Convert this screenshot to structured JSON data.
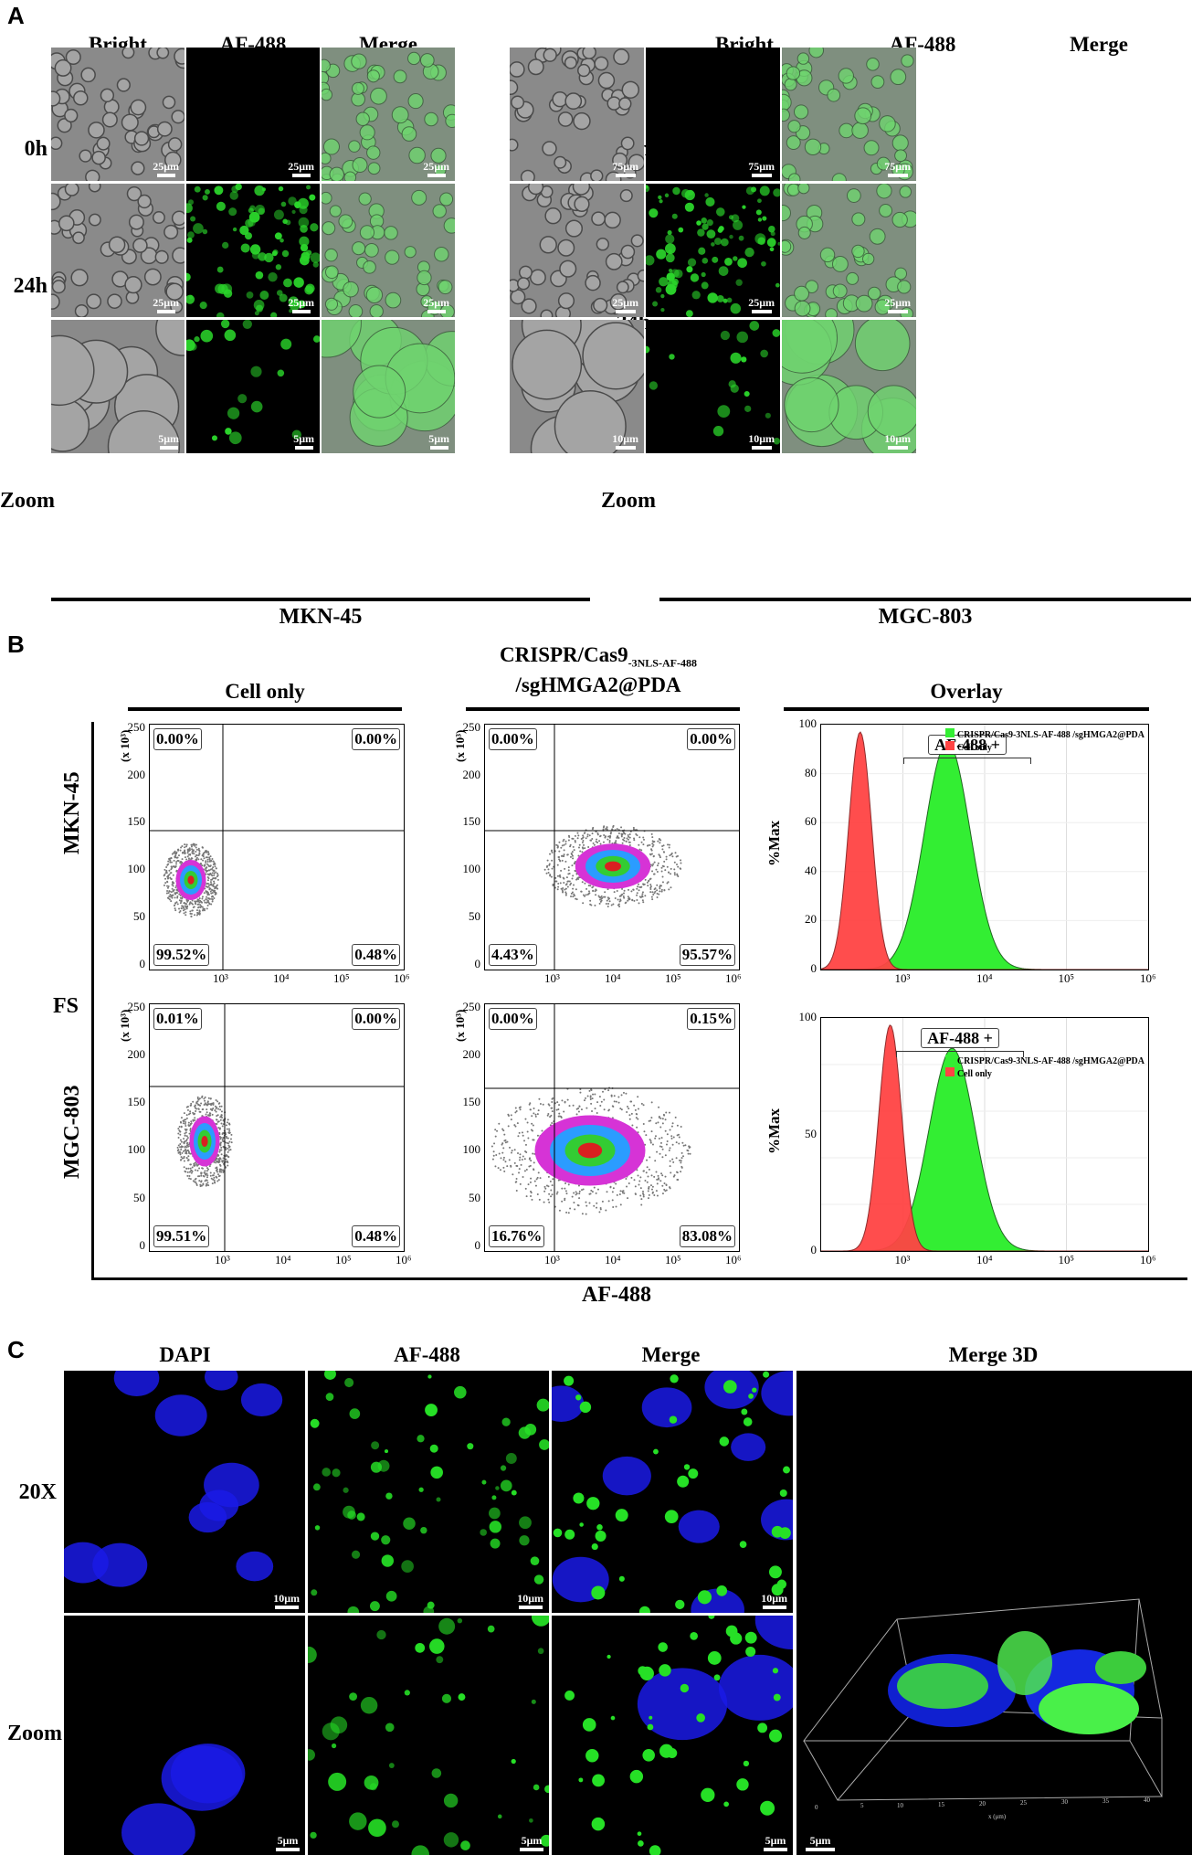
{
  "panelA": {
    "letter": "A",
    "left": {
      "columns": [
        "Bright",
        "AF-488",
        "Merge"
      ],
      "rows": [
        "0h",
        "24h",
        "Zoom"
      ],
      "cell_line": "MKN-45",
      "scalebars": [
        [
          "25μm",
          "25μm",
          "25μm"
        ],
        [
          "25μm",
          "25μm",
          "25μm"
        ],
        [
          "5μm",
          "5μm",
          "5μm"
        ]
      ]
    },
    "right": {
      "columns": [
        "Bright",
        "AF-488",
        "Merge"
      ],
      "rows": [
        "0h",
        "24h",
        "Zoom"
      ],
      "cell_line": "MGC-803",
      "scalebars": [
        [
          "75μm",
          "75μm",
          "75μm"
        ],
        [
          "25μm",
          "25μm",
          "25μm"
        ],
        [
          "10μm",
          "10μm",
          "10μm"
        ]
      ]
    }
  },
  "panelB": {
    "letter": "B",
    "col_cell_only": "Cell only",
    "col_crispr_line1": "CRISPR/Cas9",
    "col_crispr_sub": "-3NLS-AF-488",
    "col_crispr_line2": "/sgHMGA2@PDA",
    "col_overlay": "Overlay",
    "fs_label": "FS",
    "x_axis_label": "AF-488",
    "row_labels": [
      "MKN-45",
      "MGC-803"
    ],
    "y_multiplier": "(x 10³)",
    "quadrants": {
      "mkn_cell_only": [
        "0.00%",
        "0.00%",
        "99.52%",
        "0.48%"
      ],
      "mkn_crispr": [
        "0.00%",
        "0.00%",
        "4.43%",
        "95.57%"
      ],
      "mgc_cell_only": [
        "0.01%",
        "0.00%",
        "99.51%",
        "0.48%"
      ],
      "mgc_crispr": [
        "0.00%",
        "0.15%",
        "16.76%",
        "83.08%"
      ]
    },
    "scatter_y_ticks": [
      "250",
      "200",
      "150",
      "100",
      "50",
      "0"
    ],
    "x_ticks": [
      "10³",
      "10⁴",
      "10⁵",
      "10⁶"
    ],
    "overlay_top": {
      "ylabel": "%Max",
      "y_ticks": [
        "100",
        "80",
        "60",
        "40",
        "20",
        "0"
      ],
      "gate_label": "AF-488 +",
      "legend": [
        "CRISPR/Cas9-3NLS-AF-488 /sgHMGA2@PDA",
        "Cell only"
      ]
    },
    "overlay_bottom": {
      "ylabel": "%Max",
      "y_ticks": [
        "100",
        "50",
        "0"
      ],
      "gate_label": "AF-488 +",
      "legend": [
        "CRISPR/Cas9-3NLS-AF-488 /sgHMGA2@PDA",
        "Cell only"
      ]
    },
    "colors": {
      "green": "#33ee33",
      "red": "#ff4444",
      "green_edge": "#226622",
      "red_edge": "#882222"
    }
  },
  "panelC": {
    "letter": "C",
    "columns": [
      "DAPI",
      "AF-488",
      "Merge",
      "Merge 3D"
    ],
    "rows": [
      "20X",
      "Zoom"
    ],
    "scalebars": [
      [
        "10μm",
        "10μm",
        "10μm"
      ],
      [
        "5μm",
        "5μm",
        "5μm"
      ]
    ],
    "scalebar_3d": "5μm"
  },
  "chart_data": [
    {
      "type": "area",
      "title": "Overlay MKN-45",
      "ylabel": "%Max",
      "xlabel": "AF-488",
      "x_scale": "log",
      "xlim": [
        100,
        1000000
      ],
      "ylim": [
        0,
        100
      ],
      "series": [
        {
          "name": "Cell only",
          "peak_x": 300,
          "peak_y": 97
        },
        {
          "name": "CRISPR/Cas9-3NLS-AF-488 /sgHMGA2@PDA",
          "peak_x": 3500,
          "peak_y": 93
        }
      ]
    },
    {
      "type": "area",
      "title": "Overlay MGC-803",
      "ylabel": "%Max",
      "xlabel": "AF-488",
      "x_scale": "log",
      "xlim": [
        100,
        1000000
      ],
      "ylim": [
        0,
        100
      ],
      "series": [
        {
          "name": "Cell only",
          "peak_x": 700,
          "peak_y": 97
        },
        {
          "name": "CRISPR/Cas9-3NLS-AF-488 /sgHMGA2@PDA",
          "peak_x": 4000,
          "peak_y": 87
        }
      ]
    }
  ]
}
